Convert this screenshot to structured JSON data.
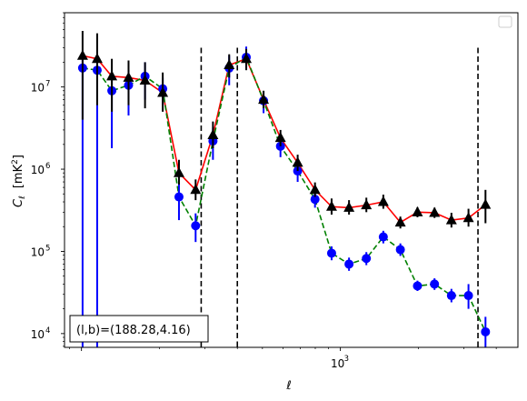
{
  "chart_data": {
    "type": "scatter",
    "title": "",
    "xlabel": "ℓ",
    "ylabel_main": "C",
    "ylabel_sub": "ℓ",
    "ylabel_unit": "[mK",
    "ylabel_unit_sup": "2",
    "ylabel_unit_close": "]",
    "xscale": "log",
    "yscale": "log",
    "xlim": [
      86,
      4850
    ],
    "ylim": [
      6800,
      80000000
    ],
    "x_ticks": [
      {
        "value": 1000,
        "base": "10",
        "exp": "3"
      }
    ],
    "y_ticks": [
      {
        "value": 10000,
        "base": "10",
        "exp": "4"
      },
      {
        "value": 100000,
        "base": "10",
        "exp": "5"
      },
      {
        "value": 1000000,
        "base": "10",
        "exp": "6"
      },
      {
        "value": 10000000,
        "base": "10",
        "exp": "7"
      }
    ],
    "vlines": [
      290,
      400,
      3400
    ],
    "annotation_box": "(l,b)=(188.28,4.16)",
    "legend": "top-right, empty",
    "colors": {
      "black_series": "#000000",
      "red_line": "#ff0000",
      "blue_series": "#0000ff",
      "green_line": "#008000",
      "vline": "#000000"
    },
    "series": [
      {
        "color": "#000000",
        "marker": "triangle",
        "connect": {
          "color": "#ff0000",
          "dash": "solid"
        },
        "points": [
          {
            "x": 101,
            "y": 24000000,
            "yerr": [
              4000000,
              48000000
            ]
          },
          {
            "x": 115,
            "y": 22000000,
            "yerr": [
              6000000,
              45000000
            ]
          },
          {
            "x": 131,
            "y": 13500000,
            "yerr": [
              5000000,
              22000000
            ]
          },
          {
            "x": 152,
            "y": 13000000,
            "yerr": [
              6000000,
              21000000
            ]
          },
          {
            "x": 176,
            "y": 12000000,
            "yerr": [
              5500000,
              20000000
            ]
          },
          {
            "x": 206,
            "y": 8500000,
            "yerr": [
              5000000,
              15000000
            ]
          },
          {
            "x": 238,
            "y": 900000,
            "yerr": [
              650000,
              1300000
            ]
          },
          {
            "x": 276,
            "y": 560000,
            "yerr": [
              420000,
              750000
            ]
          },
          {
            "x": 322,
            "y": 2600000,
            "yerr": [
              1800000,
              3800000
            ]
          },
          {
            "x": 372,
            "y": 18500000,
            "yerr": [
              13000000,
              25000000
            ]
          },
          {
            "x": 433,
            "y": 22000000,
            "yerr": [
              16000000,
              29000000
            ]
          },
          {
            "x": 505,
            "y": 7000000,
            "yerr": [
              5500000,
              9000000
            ]
          },
          {
            "x": 587,
            "y": 2400000,
            "yerr": [
              1900000,
              3000000
            ]
          },
          {
            "x": 684,
            "y": 1200000,
            "yerr": [
              950000,
              1500000
            ]
          },
          {
            "x": 798,
            "y": 560000,
            "yerr": [
              460000,
              690000
            ]
          },
          {
            "x": 925,
            "y": 350000,
            "yerr": [
              280000,
              440000
            ]
          },
          {
            "x": 1080,
            "y": 340000,
            "yerr": [
              280000,
              420000
            ]
          },
          {
            "x": 1260,
            "y": 365000,
            "yerr": [
              300000,
              450000
            ]
          },
          {
            "x": 1465,
            "y": 400000,
            "yerr": [
              330000,
              490000
            ]
          },
          {
            "x": 1705,
            "y": 225000,
            "yerr": [
              190000,
              265000
            ]
          },
          {
            "x": 1985,
            "y": 300000,
            "yerr": [
              260000,
              345000
            ]
          },
          {
            "x": 2310,
            "y": 295000,
            "yerr": [
              255000,
              340000
            ]
          },
          {
            "x": 2685,
            "y": 240000,
            "yerr": [
              195000,
              295000
            ]
          },
          {
            "x": 3125,
            "y": 255000,
            "yerr": [
              200000,
              330000
            ]
          },
          {
            "x": 3635,
            "y": 370000,
            "yerr": [
              220000,
              560000
            ]
          }
        ]
      },
      {
        "color": "#0000ff",
        "marker": "circle",
        "connect": {
          "color": "#008000",
          "dash": "dashed"
        },
        "points": [
          {
            "x": 101,
            "y": 17000000,
            "yerr": [
              6800,
              25000000
            ]
          },
          {
            "x": 115,
            "y": 16000000,
            "yerr": [
              6800,
              22000000
            ]
          },
          {
            "x": 131,
            "y": 9000000,
            "yerr": [
              1800000,
              15000000
            ]
          },
          {
            "x": 152,
            "y": 10500000,
            "yerr": [
              4500000,
              16000000
            ]
          },
          {
            "x": 176,
            "y": 13500000,
            "yerr": [
              7000000,
              20000000
            ]
          },
          {
            "x": 206,
            "y": 9500000,
            "yerr": [
              6000000,
              13000000
            ]
          },
          {
            "x": 238,
            "y": 460000,
            "yerr": [
              240000,
              680000
            ]
          },
          {
            "x": 276,
            "y": 205000,
            "yerr": [
              130000,
              290000
            ]
          },
          {
            "x": 322,
            "y": 2200000,
            "yerr": [
              1300000,
              3200000
            ]
          },
          {
            "x": 372,
            "y": 17000000,
            "yerr": [
              10500000,
              24000000
            ]
          },
          {
            "x": 433,
            "y": 23000000,
            "yerr": [
              17000000,
              31000000
            ]
          },
          {
            "x": 505,
            "y": 6800000,
            "yerr": [
              4800000,
              8800000
            ]
          },
          {
            "x": 587,
            "y": 1900000,
            "yerr": [
              1400000,
              2400000
            ]
          },
          {
            "x": 684,
            "y": 950000,
            "yerr": [
              700000,
              1200000
            ]
          },
          {
            "x": 798,
            "y": 430000,
            "yerr": [
              340000,
              520000
            ]
          },
          {
            "x": 925,
            "y": 95000,
            "yerr": [
              78000,
              115000
            ]
          },
          {
            "x": 1080,
            "y": 70000,
            "yerr": [
              58000,
              84000
            ]
          },
          {
            "x": 1260,
            "y": 82000,
            "yerr": [
              68000,
              98000
            ]
          },
          {
            "x": 1465,
            "y": 150000,
            "yerr": [
              125000,
              178000
            ]
          },
          {
            "x": 1705,
            "y": 105000,
            "yerr": [
              88000,
              125000
            ]
          },
          {
            "x": 1985,
            "y": 38000,
            "yerr": [
              33000,
              44000
            ]
          },
          {
            "x": 2310,
            "y": 40000,
            "yerr": [
              34000,
              47000
            ]
          },
          {
            "x": 2685,
            "y": 29000,
            "yerr": [
              24000,
              35000
            ]
          },
          {
            "x": 3125,
            "y": 29000,
            "yerr": [
              20000,
              40000
            ]
          },
          {
            "x": 3635,
            "y": 10500,
            "yerr": [
              6800,
              16000
            ]
          }
        ]
      }
    ]
  }
}
